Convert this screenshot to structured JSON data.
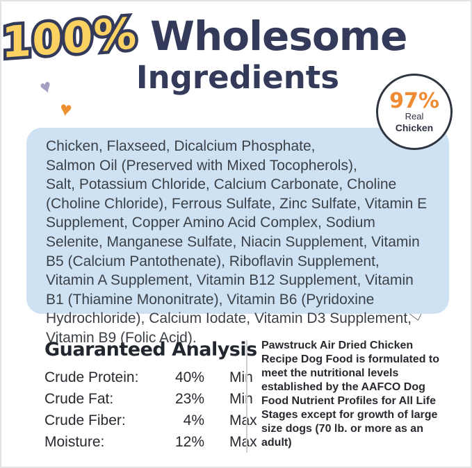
{
  "colors": {
    "navy": "#333a5a",
    "yellow": "#fbd261",
    "orange": "#ee8b33",
    "light_blue": "#cfe2f4",
    "text_dark": "#26292e"
  },
  "icons": {
    "heart": "♥",
    "heart_outline": "♡"
  },
  "header": {
    "percent": "100%",
    "title_word1": "Wholesome",
    "title_word2": "Ingredients"
  },
  "badge": {
    "percent": "97%",
    "line1": "Real",
    "line2": "Chicken"
  },
  "ingredients": {
    "text": "Chicken, Flaxseed, Dicalcium Phosphate, Salmon Oil (Preserved with Mixed Tocopherols), Salt, Potassium Chloride, Calcium Carbonate, Choline (Choline Chloride), Ferrous Sulfate, Zinc Sulfate, Vitamin E Supplement, Copper Amino Acid Complex, Sodium Selenite, Manganese Sulfate, Niacin Supplement, Vitamin B5 (Calcium Pantothenate), Riboflavin Supplement, Vitamin A Supplement, Vitamin B12 Supplement, Vitamin B1 (Thiamine Mononitrate), Vitamin B6 (Pyridoxine Hydrochloride), Calcium Iodate, Vitamin D3 Supplement, Vitamin B9 (Folic Acid)."
  },
  "analysis": {
    "title": "Guaranteed Analysis",
    "rows": [
      {
        "label": "Crude Protein:",
        "value": "40%",
        "limit": "Min"
      },
      {
        "label": "Crude Fat:",
        "value": "23%",
        "limit": "Min"
      },
      {
        "label": "Crude Fiber:",
        "value": "4%",
        "limit": "Max"
      },
      {
        "label": "Moisture:",
        "value": "12%",
        "limit": "Max"
      }
    ]
  },
  "aafco_note": "Pawstruck Air Dried Chicken Recipe Dog Food is formulated to meet the nutritional levels established by the AAFCO Dog Food Nutrient Profiles for All Life Stages except for growth of large size dogs (70 lb. or more as an adult)"
}
